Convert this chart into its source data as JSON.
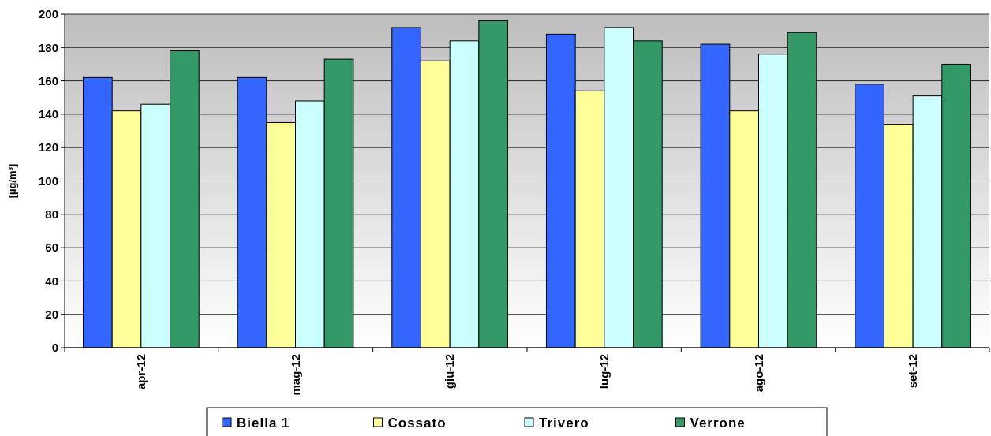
{
  "chart_data": {
    "type": "bar",
    "ylabel": "[µg/m³]",
    "categories": [
      "apr-12",
      "mag-12",
      "giu-12",
      "lug-12",
      "ago-12",
      "set-12"
    ],
    "series": [
      {
        "name": "Biella 1",
        "color": "#3366ff",
        "values": [
          162,
          162,
          192,
          188,
          182,
          158
        ]
      },
      {
        "name": "Cossato",
        "color": "#ffff99",
        "values": [
          142,
          135,
          172,
          154,
          142,
          134
        ]
      },
      {
        "name": "Trivero",
        "color": "#ccffff",
        "values": [
          146,
          148,
          184,
          192,
          176,
          151
        ]
      },
      {
        "name": "Verrone",
        "color": "#339966",
        "values": [
          178,
          173,
          196,
          184,
          189,
          170
        ]
      }
    ],
    "ylim": [
      0,
      200
    ],
    "yticks": [
      0,
      20,
      40,
      60,
      80,
      100,
      120,
      140,
      160,
      180,
      200
    ],
    "grid": "y",
    "legend": "bottom"
  }
}
